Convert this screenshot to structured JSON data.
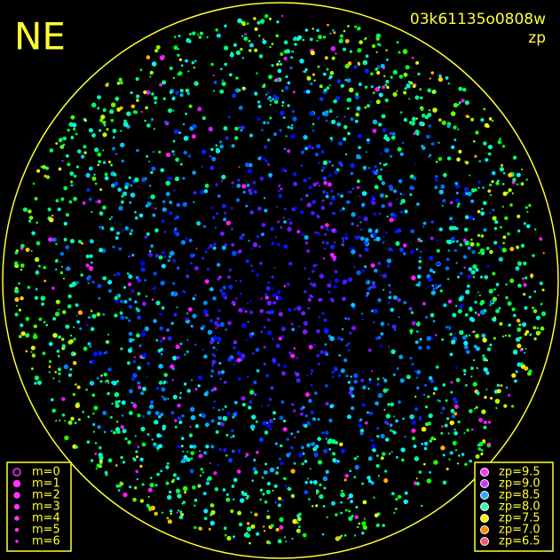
{
  "header": {
    "corner": "NE",
    "image_id": "03k61135o0808w",
    "mode": "zp"
  },
  "magnitude_legend": [
    "m=0",
    "m=1",
    "m=2",
    "m=3",
    "m=4",
    "m=5",
    "m=6"
  ],
  "zp_legend": [
    {
      "label": "zp=9.5",
      "color": "#ff33ff"
    },
    {
      "label": "zp=9.0",
      "color": "#cc33ff"
    },
    {
      "label": "zp=8.5",
      "color": "#33aaff"
    },
    {
      "label": "zp=8.0",
      "color": "#33ffaa"
    },
    {
      "label": "zp=7.5",
      "color": "#ffee00"
    },
    {
      "label": "zp=7.0",
      "color": "#ff8800"
    },
    {
      "label": "zp=6.5",
      "color": "#ff5566"
    }
  ]
}
